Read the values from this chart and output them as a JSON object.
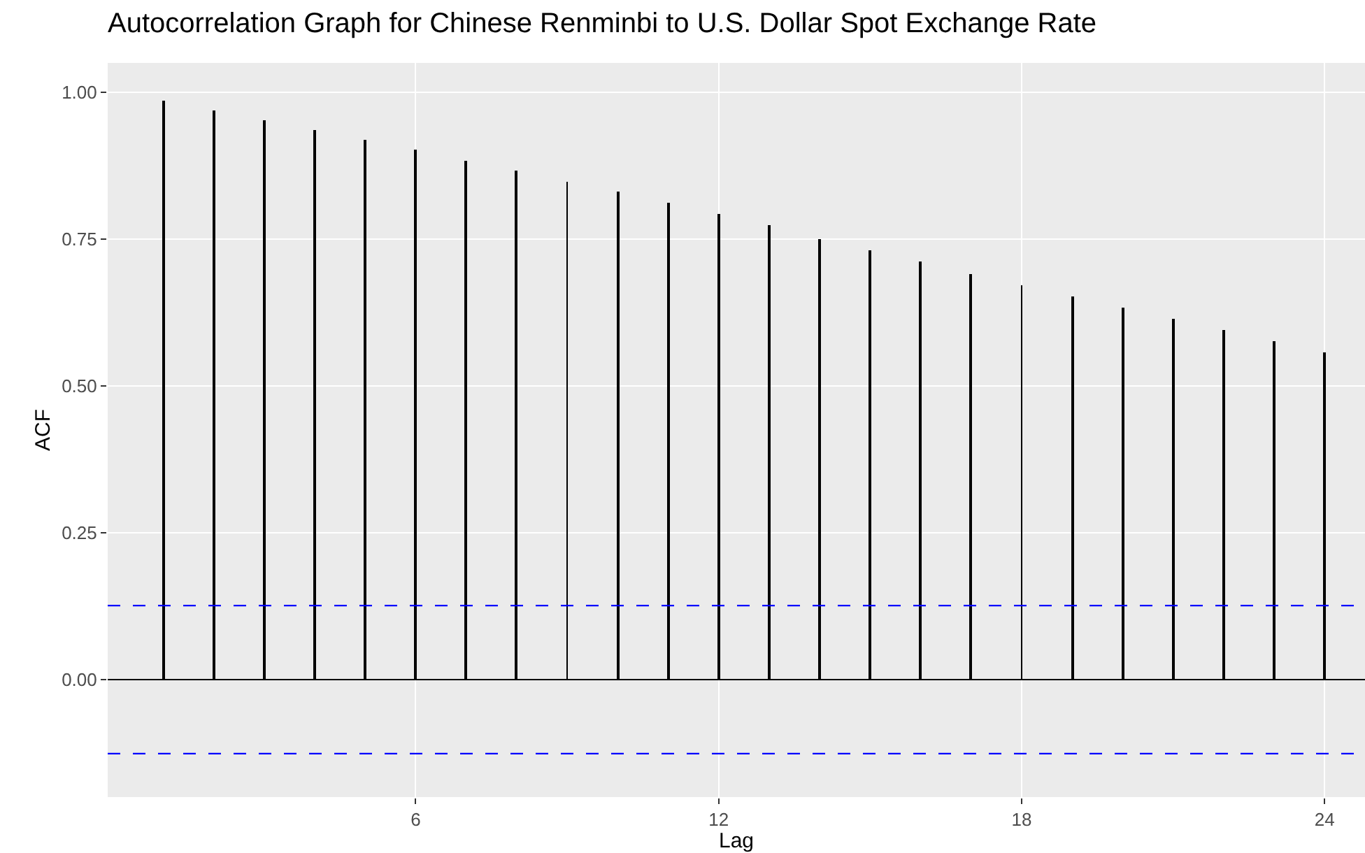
{
  "chart_data": {
    "type": "bar",
    "title": "Autocorrelation Graph for Chinese Renminbi to U.S. Dollar Spot Exchange Rate",
    "xlabel": "Lag",
    "ylabel": "ACF",
    "x": [
      1,
      2,
      3,
      4,
      5,
      6,
      7,
      8,
      9,
      10,
      11,
      12,
      13,
      14,
      15,
      16,
      17,
      18,
      19,
      20,
      21,
      22,
      23,
      24
    ],
    "values": [
      0.986,
      0.969,
      0.952,
      0.935,
      0.919,
      0.902,
      0.883,
      0.866,
      0.847,
      0.83,
      0.811,
      0.792,
      0.773,
      0.751,
      0.73,
      0.711,
      0.691,
      0.672,
      0.653,
      0.634,
      0.615,
      0.596,
      0.577,
      0.557
    ],
    "color": "#000000",
    "xlim": [
      -0.1,
      24.8
    ],
    "xticks": [
      6,
      12,
      18,
      24
    ],
    "ylim": [
      -0.2,
      1.05
    ],
    "yticks": [
      {
        "value": 0,
        "label": "0.00"
      },
      {
        "value": 0.25,
        "label": "0.25"
      },
      {
        "value": 0.5,
        "label": "0.50"
      },
      {
        "value": 0.75,
        "label": "0.75"
      },
      {
        "value": 1,
        "label": "1.00"
      }
    ],
    "ref_lines": [
      {
        "axis": "y",
        "value": 0,
        "color": "#000000",
        "line_style": "solid"
      },
      {
        "axis": "y",
        "value": 0.126,
        "color": "#0000ff",
        "line_style": "dashed"
      },
      {
        "axis": "y",
        "value": -0.126,
        "color": "#0000ff",
        "line_style": "dashed"
      }
    ],
    "grid": true,
    "legend": false
  }
}
